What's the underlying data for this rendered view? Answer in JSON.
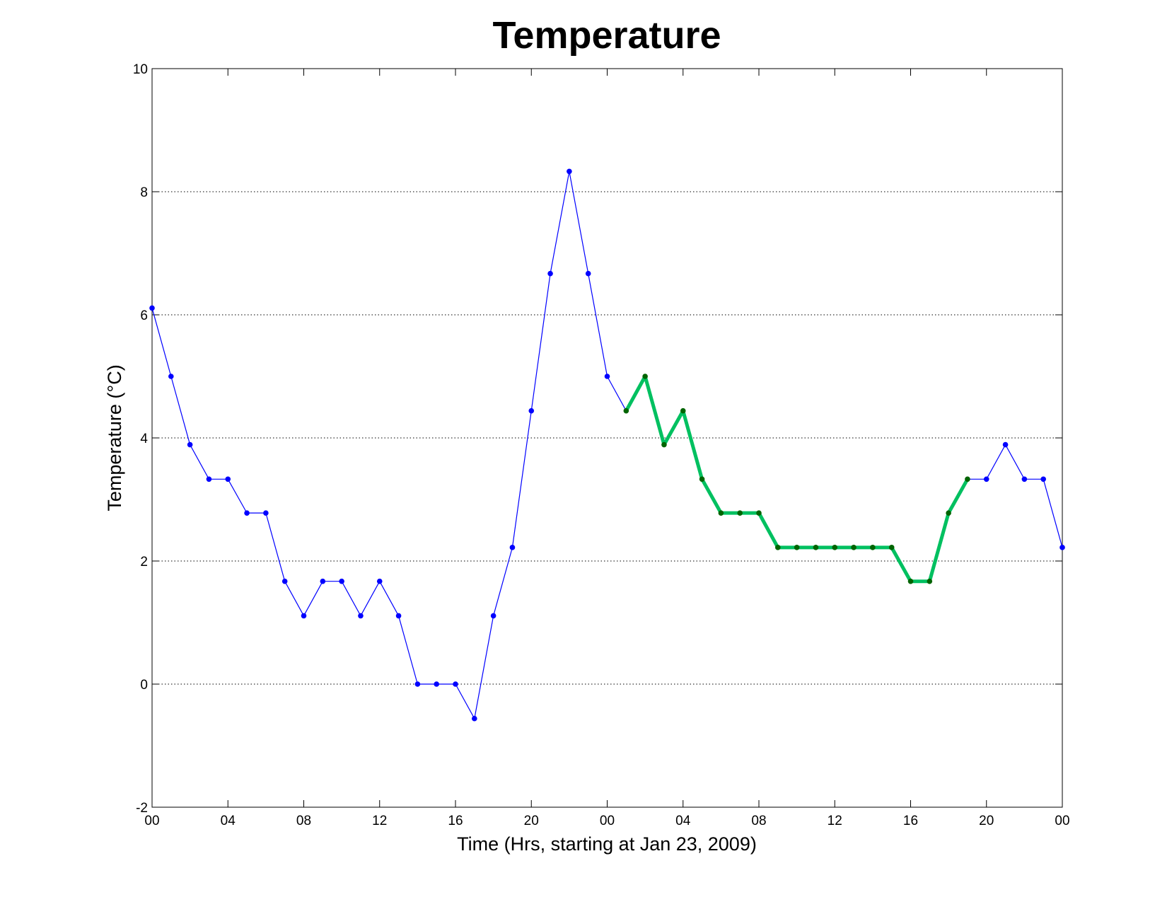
{
  "chart_data": {
    "type": "line",
    "title": "Temperature",
    "xlabel": "Time (Hrs, starting at Jan 23, 2009)",
    "ylabel": "Temperature (°C)",
    "xlim": [
      0,
      48
    ],
    "ylim": [
      -2,
      10
    ],
    "x_ticks": [
      0,
      4,
      8,
      12,
      16,
      20,
      24,
      28,
      32,
      36,
      40,
      44,
      48
    ],
    "x_tick_labels": [
      "00",
      "04",
      "08",
      "12",
      "16",
      "20",
      "00",
      "04",
      "08",
      "12",
      "16",
      "20",
      "00"
    ],
    "y_ticks": [
      -2,
      0,
      2,
      4,
      6,
      8,
      10
    ],
    "y_tick_labels": [
      "-2",
      "0",
      "2",
      "4",
      "6",
      "8",
      "10"
    ],
    "grid": "horizontal dotted",
    "x": [
      0,
      1,
      2,
      3,
      4,
      5,
      6,
      7,
      8,
      9,
      10,
      11,
      12,
      13,
      14,
      15,
      16,
      17,
      18,
      19,
      20,
      21,
      22,
      23,
      24,
      25,
      26,
      27,
      28,
      29,
      30,
      31,
      32,
      33,
      34,
      35,
      36,
      37,
      38,
      39,
      40,
      41,
      42,
      43,
      44,
      45,
      46,
      47,
      48
    ],
    "series": [
      {
        "color": "#0000ff",
        "marker_color": "#0000ff",
        "values": [
          6.11,
          5.0,
          3.89,
          3.33,
          3.33,
          2.78,
          2.78,
          1.67,
          1.11,
          1.67,
          1.67,
          1.11,
          1.67,
          1.11,
          0.0,
          0.0,
          0.0,
          -0.56,
          1.11,
          2.22,
          4.44,
          6.67,
          8.33,
          6.67,
          5.0,
          4.44,
          5.0,
          3.89,
          4.44,
          3.33,
          2.78,
          2.78,
          2.78,
          2.22,
          2.22,
          2.22,
          2.22,
          2.22,
          2.22,
          2.22,
          1.67,
          1.67,
          2.78,
          3.33,
          3.33,
          3.89,
          3.33,
          3.33,
          2.22
        ]
      },
      {
        "color": "#00c060",
        "marker_color": "#006400",
        "highlight": true,
        "x_start": 25,
        "x_end": 43
      }
    ]
  }
}
